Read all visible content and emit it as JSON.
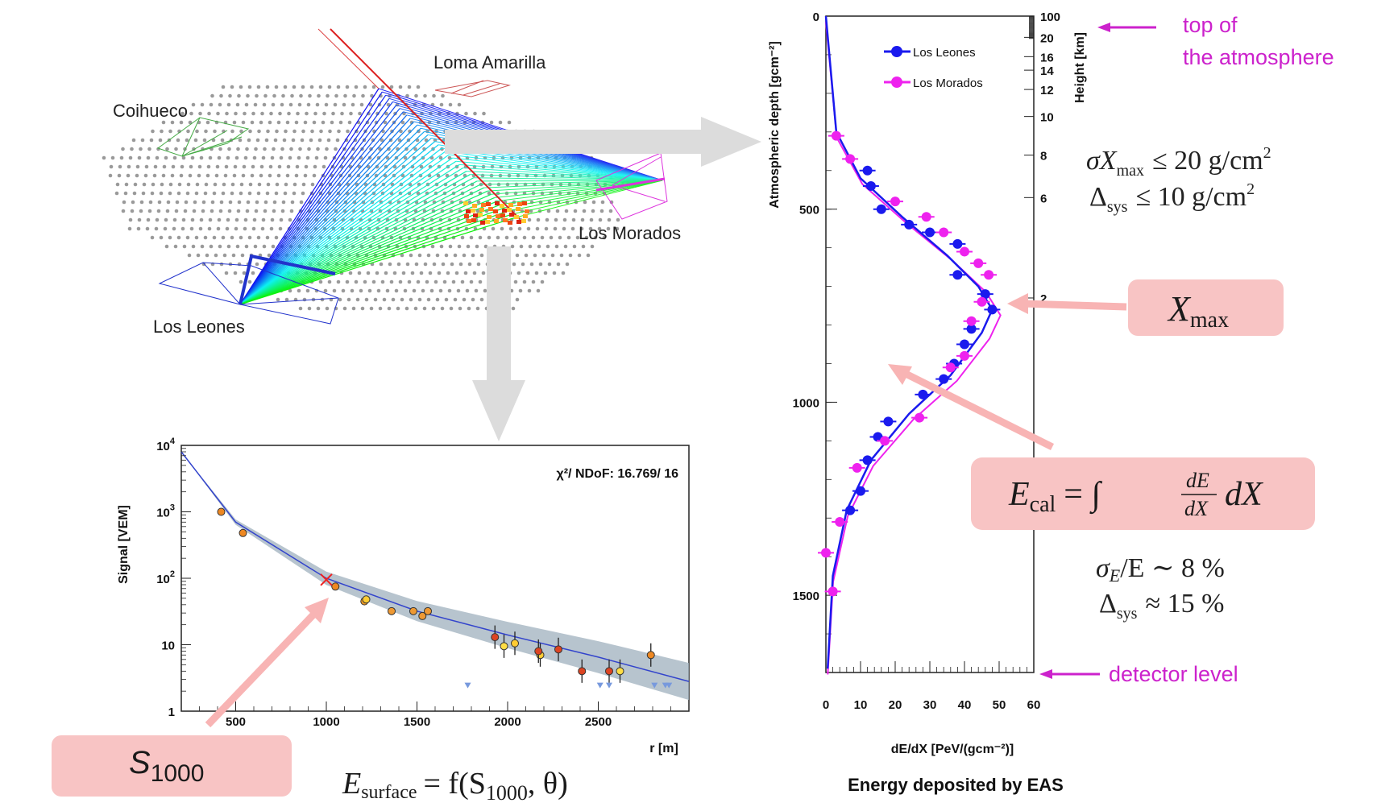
{
  "colors": {
    "leones": "#1a1aee",
    "morados": "#ee22ee",
    "note": "#cc22cc",
    "callout_fill": "#f8c4c4",
    "arrow_gray": "#dcdcdc",
    "band": "#9fb0be",
    "ldf_line": "#3344cc"
  },
  "array_map": {
    "sites": [
      "Loma Amarilla",
      "Coihueco",
      "Los Morados",
      "Los Leones"
    ]
  },
  "ldf_plot": {
    "ylabel": "Signal [VEM]",
    "xlabel": "r [m]",
    "chi2": "χ²/ NDoF: 16.769/ 16",
    "y_ticks": [
      "10",
      "10",
      "10",
      "10",
      "1"
    ],
    "y_exps": [
      "4",
      "3",
      "2",
      "",
      ""
    ],
    "x_ticks": [
      "500",
      "1000",
      "1500",
      "2000",
      "2500"
    ]
  },
  "profile_plot": {
    "ylabel_left": "Atmospheric depth  [gcm⁻²]",
    "ylabel_right": "Height  [km]",
    "xlabel": "dE/dX [PeV/(gcm⁻²)]",
    "caption": "Energy deposited by EAS",
    "left_ticks": [
      "0",
      "500",
      "1000",
      "1500"
    ],
    "right_ticks": [
      "100",
      "20",
      "16",
      "14",
      "12",
      "10",
      "8",
      "6",
      "2"
    ],
    "x_ticks": [
      "0",
      "10",
      "20",
      "30",
      "40",
      "50",
      "60"
    ],
    "legend": [
      "Los Leones",
      "Los Morados"
    ]
  },
  "annotations": {
    "top_atmosphere_1": "top of",
    "top_atmosphere_2": "the atmosphere",
    "detector_level": "detector level",
    "xmax_resolution": "σ",
    "xmax_res_X": "X",
    "xmax_res_sub": "max",
    "xmax_res_val": "≤ 20 g/cm",
    "xmax_res_sup": "2",
    "xmax_sys": "Δ",
    "xmax_sys_sub": "sys",
    "xmax_sys_val": "≤ 10 g/cm",
    "xmax_sys_sup": "2",
    "e_res_sigma": "σ",
    "e_res_E": "E",
    "e_res_rest": "/E ∼ 8 %",
    "e_sys": "Δ",
    "e_sys_sub": "sys",
    "e_sys_rest": "≈ 15 %"
  },
  "callouts": {
    "xmax_X": "X",
    "xmax_sub": "max",
    "ecal_E": "E",
    "ecal_sub": "cal",
    "ecal_eq": "= ∫",
    "ecal_num": "dE",
    "ecal_den": "dX",
    "ecal_dx": "dX",
    "s1000_S": "S",
    "s1000_sub": "1000",
    "esurf_E": "E",
    "esurf_sub": "surface",
    "esurf_rest": "= f(S",
    "esurf_rest_sub": "1000",
    "esurf_rest2": ", θ)"
  },
  "chart_data": [
    {
      "type": "scatter",
      "title": "",
      "xlabel": "r [m]",
      "ylabel": "Signal [VEM]",
      "xlim": [
        200,
        3000
      ],
      "ylim": [
        1,
        10000
      ],
      "yscale": "log",
      "annotation": "χ²/ NDoF: 16.769/ 16",
      "series": [
        {
          "name": "stations",
          "x": [
            420,
            540,
            1050,
            1210,
            1220,
            1360,
            1480,
            1530,
            1560,
            1930,
            1980,
            2040,
            2180,
            2170,
            2280,
            2410,
            2560,
            2620,
            2790
          ],
          "y": [
            1000,
            480,
            75,
            45,
            48,
            32,
            32,
            27,
            32,
            13,
            9.5,
            10.5,
            7,
            8,
            8.5,
            4,
            4,
            4,
            7
          ]
        },
        {
          "name": "fit",
          "x": [
            200,
            500,
            1000,
            1500,
            2000,
            2500,
            3000
          ],
          "y": [
            8000,
            700,
            100,
            32,
            14,
            6.5,
            2.8
          ]
        }
      ],
      "marker": {
        "name": "S1000",
        "x": 1000,
        "y": 95
      }
    },
    {
      "type": "scatter",
      "title": "Energy deposited by EAS",
      "xlabel": "dE/dX [PeV/(gcm⁻²)]",
      "ylabel": "Atmospheric depth [gcm⁻²]",
      "xlim": [
        0,
        60
      ],
      "ylim": [
        1700,
        0
      ],
      "series": [
        {
          "name": "Los Leones",
          "x": [
            12,
            13,
            16,
            24,
            30,
            38,
            38,
            46,
            48,
            42,
            40,
            37,
            34,
            28,
            18,
            15,
            12,
            10,
            7
          ],
          "y": [
            400,
            440,
            500,
            540,
            560,
            590,
            670,
            720,
            760,
            810,
            850,
            900,
            940,
            980,
            1050,
            1090,
            1150,
            1230,
            1280
          ]
        },
        {
          "name": "Los Morados",
          "x": [
            3,
            7,
            20,
            29,
            34,
            40,
            44,
            47,
            45,
            42,
            40,
            36,
            27,
            17,
            9,
            4,
            0,
            2
          ],
          "y": [
            310,
            370,
            480,
            520,
            560,
            610,
            640,
            670,
            740,
            790,
            880,
            910,
            1040,
            1100,
            1170,
            1310,
            1390,
            1490
          ]
        },
        {
          "name": "fit",
          "x": [
            0,
            3,
            10,
            22,
            35,
            44,
            48,
            45,
            36,
            24,
            13,
            6,
            2,
            0.5
          ],
          "y": [
            0,
            300,
            420,
            520,
            620,
            700,
            760,
            820,
            930,
            1030,
            1150,
            1280,
            1450,
            1690
          ]
        }
      ]
    }
  ]
}
